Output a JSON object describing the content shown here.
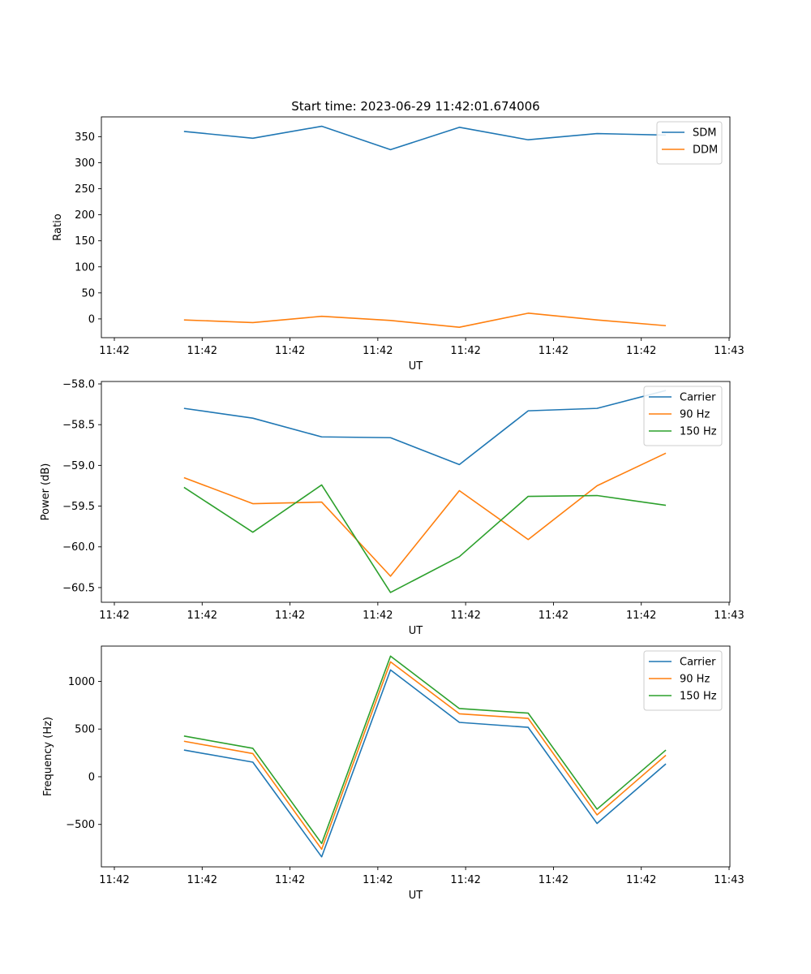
{
  "figure": {
    "title": "Start time: 2023-06-29 11:42:01.674006"
  },
  "chart_data": [
    {
      "type": "line",
      "xlabel": "UT",
      "ylabel": "Ratio",
      "xticklabels": [
        "11:42",
        "11:42",
        "11:42",
        "11:42",
        "11:42",
        "11:42",
        "11:42"
      ],
      "xtick_last_label": "11:43",
      "xlim": [
        -0.2,
        8.93
      ],
      "ylim": [
        -36,
        388
      ],
      "yticks": [
        0,
        50,
        100,
        150,
        200,
        250,
        300,
        350
      ],
      "x": [
        1,
        2,
        3,
        4,
        5,
        6,
        7,
        8
      ],
      "legend": "top-right",
      "grid": false,
      "series": [
        {
          "name": "SDM",
          "color": "#1f77b4",
          "values": [
            360,
            347,
            370,
            325,
            368,
            344,
            356,
            353
          ]
        },
        {
          "name": "DDM",
          "color": "#ff7f0e",
          "values": [
            -2,
            -7,
            5,
            -3,
            -16,
            11,
            -2,
            -13
          ]
        }
      ]
    },
    {
      "type": "line",
      "xlabel": "UT",
      "ylabel": "Power (dB)",
      "xticklabels": [
        "11:42",
        "11:42",
        "11:42",
        "11:42",
        "11:42",
        "11:42",
        "11:42"
      ],
      "xtick_last_label": "11:43",
      "xlim": [
        -0.2,
        8.93
      ],
      "ylim": [
        -60.68,
        -57.97
      ],
      "yticks": [
        -60.5,
        -60.0,
        -59.5,
        -59.0,
        -58.5,
        -58.0
      ],
      "x": [
        1,
        2,
        3,
        4,
        5,
        6,
        7,
        8
      ],
      "legend": "top-right",
      "grid": false,
      "series": [
        {
          "name": "Carrier",
          "color": "#1f77b4",
          "values": [
            -58.3,
            -58.42,
            -58.65,
            -58.66,
            -58.99,
            -58.33,
            -58.3,
            -58.08
          ]
        },
        {
          "name": "90 Hz",
          "color": "#ff7f0e",
          "values": [
            -59.15,
            -59.47,
            -59.45,
            -60.36,
            -59.31,
            -59.91,
            -59.25,
            -58.85
          ]
        },
        {
          "name": "150 Hz",
          "color": "#2ca02c",
          "values": [
            -59.27,
            -59.82,
            -59.24,
            -60.56,
            -60.12,
            -59.38,
            -59.37,
            -59.49
          ]
        }
      ]
    },
    {
      "type": "line",
      "xlabel": "UT",
      "ylabel": "Frequency (Hz)",
      "xticklabels": [
        "11:42",
        "11:42",
        "11:42",
        "11:42",
        "11:42",
        "11:42",
        "11:42"
      ],
      "xtick_last_label": "11:43",
      "xlim": [
        -0.2,
        8.93
      ],
      "ylim": [
        -945,
        1370
      ],
      "yticks": [
        -500,
        0,
        500,
        1000
      ],
      "x": [
        1,
        2,
        3,
        4,
        5,
        6,
        7,
        8
      ],
      "legend": "top-right",
      "grid": false,
      "series": [
        {
          "name": "Carrier",
          "color": "#1f77b4",
          "values": [
            280,
            153,
            -840,
            1120,
            570,
            518,
            -490,
            135
          ]
        },
        {
          "name": "90 Hz",
          "color": "#ff7f0e",
          "values": [
            372,
            243,
            -760,
            1205,
            660,
            612,
            -400,
            225
          ]
        },
        {
          "name": "150 Hz",
          "color": "#2ca02c",
          "values": [
            427,
            298,
            -700,
            1265,
            715,
            667,
            -340,
            280
          ]
        }
      ]
    }
  ]
}
